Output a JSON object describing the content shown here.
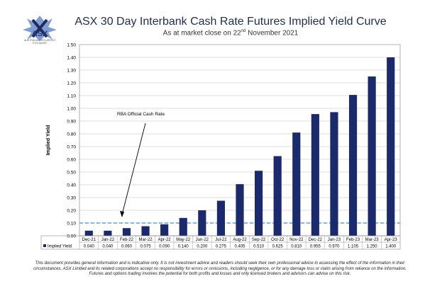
{
  "logo": {
    "text": "ASX",
    "sub": "AUSTRALIAN SECURITIES EXCHANGE",
    "color": "#2a3a7a"
  },
  "title": "ASX 30 Day Interbank Cash Rate Futures Implied Yield Curve",
  "subtitle_prefix": "As at market close on 22",
  "subtitle_sup": "nd",
  "subtitle_suffix": " November 2021",
  "chart_data": {
    "type": "bar",
    "ylabel": "Implied Yield",
    "ylim": [
      0,
      1.5
    ],
    "yticks": [
      "0.00",
      "0.10",
      "0.20",
      "0.30",
      "0.40",
      "0.50",
      "0.60",
      "0.70",
      "0.80",
      "0.90",
      "1.00",
      "1.10",
      "1.20",
      "1.30",
      "1.40",
      "1.50"
    ],
    "categories": [
      "Dec-21",
      "Jan-22",
      "Feb-22",
      "Mar-22",
      "Apr-22",
      "May-22",
      "Jun-22",
      "Jul-22",
      "Aug-22",
      "Sep-22",
      "Oct-22",
      "Nov-22",
      "Dec-22",
      "Jan-23",
      "Feb-23",
      "Mar-23",
      "Apr-23"
    ],
    "series": [
      {
        "name": "Implied Yield",
        "values": [
          0.04,
          0.04,
          0.06,
          0.075,
          0.09,
          0.14,
          0.2,
          0.275,
          0.405,
          0.51,
          0.625,
          0.81,
          0.955,
          0.97,
          1.105,
          1.25,
          1.4
        ],
        "labels": [
          "0.040",
          "0.040",
          "0.060",
          "0.075",
          "0.090",
          "0.140",
          "0.200",
          "0.275",
          "0.405",
          "0.510",
          "0.625",
          "0.810",
          "0.955",
          "0.970",
          "1.105",
          "1.250",
          "1.400"
        ],
        "color": "#1a2a6c"
      }
    ],
    "reference_line": {
      "value": 0.1,
      "color": "#5aa0d8"
    },
    "annotation": "RBA Official Cash Rate",
    "grid": true,
    "table_below": true
  },
  "disclaimer": "This document provides general information and is indicative only. It is not investment advice and readers should seek their own professional advice in assessing the effect of the information in their circumstances. ASX Limited and its related corporations accept no responsibility for errors or omissions, including negligence, or for any damage loss or claim arising from reliance on the information. Futures and options trading involves the potential for both profits and losses and only licensed brokers and advisors can advise on this risk."
}
